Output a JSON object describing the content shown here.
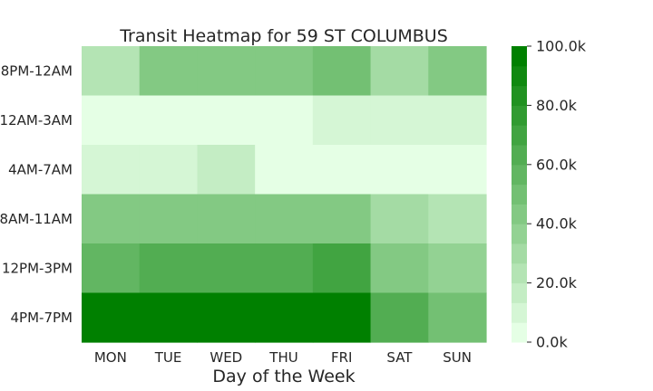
{
  "chart_data": {
    "type": "heatmap",
    "title": "Transit Heatmap for 59 ST COLUMBUS",
    "xlabel": "Day of the Week",
    "ylabel": "",
    "x_categories": [
      "MON",
      "TUE",
      "WED",
      "THU",
      "FRI",
      "SAT",
      "SUN"
    ],
    "y_categories": [
      "8PM-12AM",
      "12AM-3AM",
      "4AM-7AM",
      "8AM-11AM",
      "12PM-3PM",
      "4PM-7PM"
    ],
    "values": [
      [
        24000,
        40000,
        45000,
        45000,
        52000,
        31000,
        40000
      ],
      [
        1000,
        1000,
        1000,
        1000,
        8000,
        8000,
        8000
      ],
      [
        8000,
        8000,
        16000,
        6000,
        6000,
        2000,
        2000
      ],
      [
        40000,
        46000,
        46000,
        46000,
        46000,
        28000,
        24000
      ],
      [
        56000,
        62000,
        62000,
        62000,
        68000,
        46000,
        36000
      ],
      [
        98000,
        98000,
        98000,
        98000,
        98000,
        62000,
        52000
      ]
    ],
    "colorbar": {
      "min": 0,
      "max": 100000,
      "ticks": [
        0,
        20000,
        40000,
        60000,
        80000,
        100000
      ],
      "tick_labels": [
        "0.0k",
        "20.0k",
        "40.0k",
        "60.0k",
        "80.0k",
        "100.0k"
      ],
      "levels": 15,
      "color_low": "#e5ffe5",
      "color_high": "#008000"
    }
  }
}
